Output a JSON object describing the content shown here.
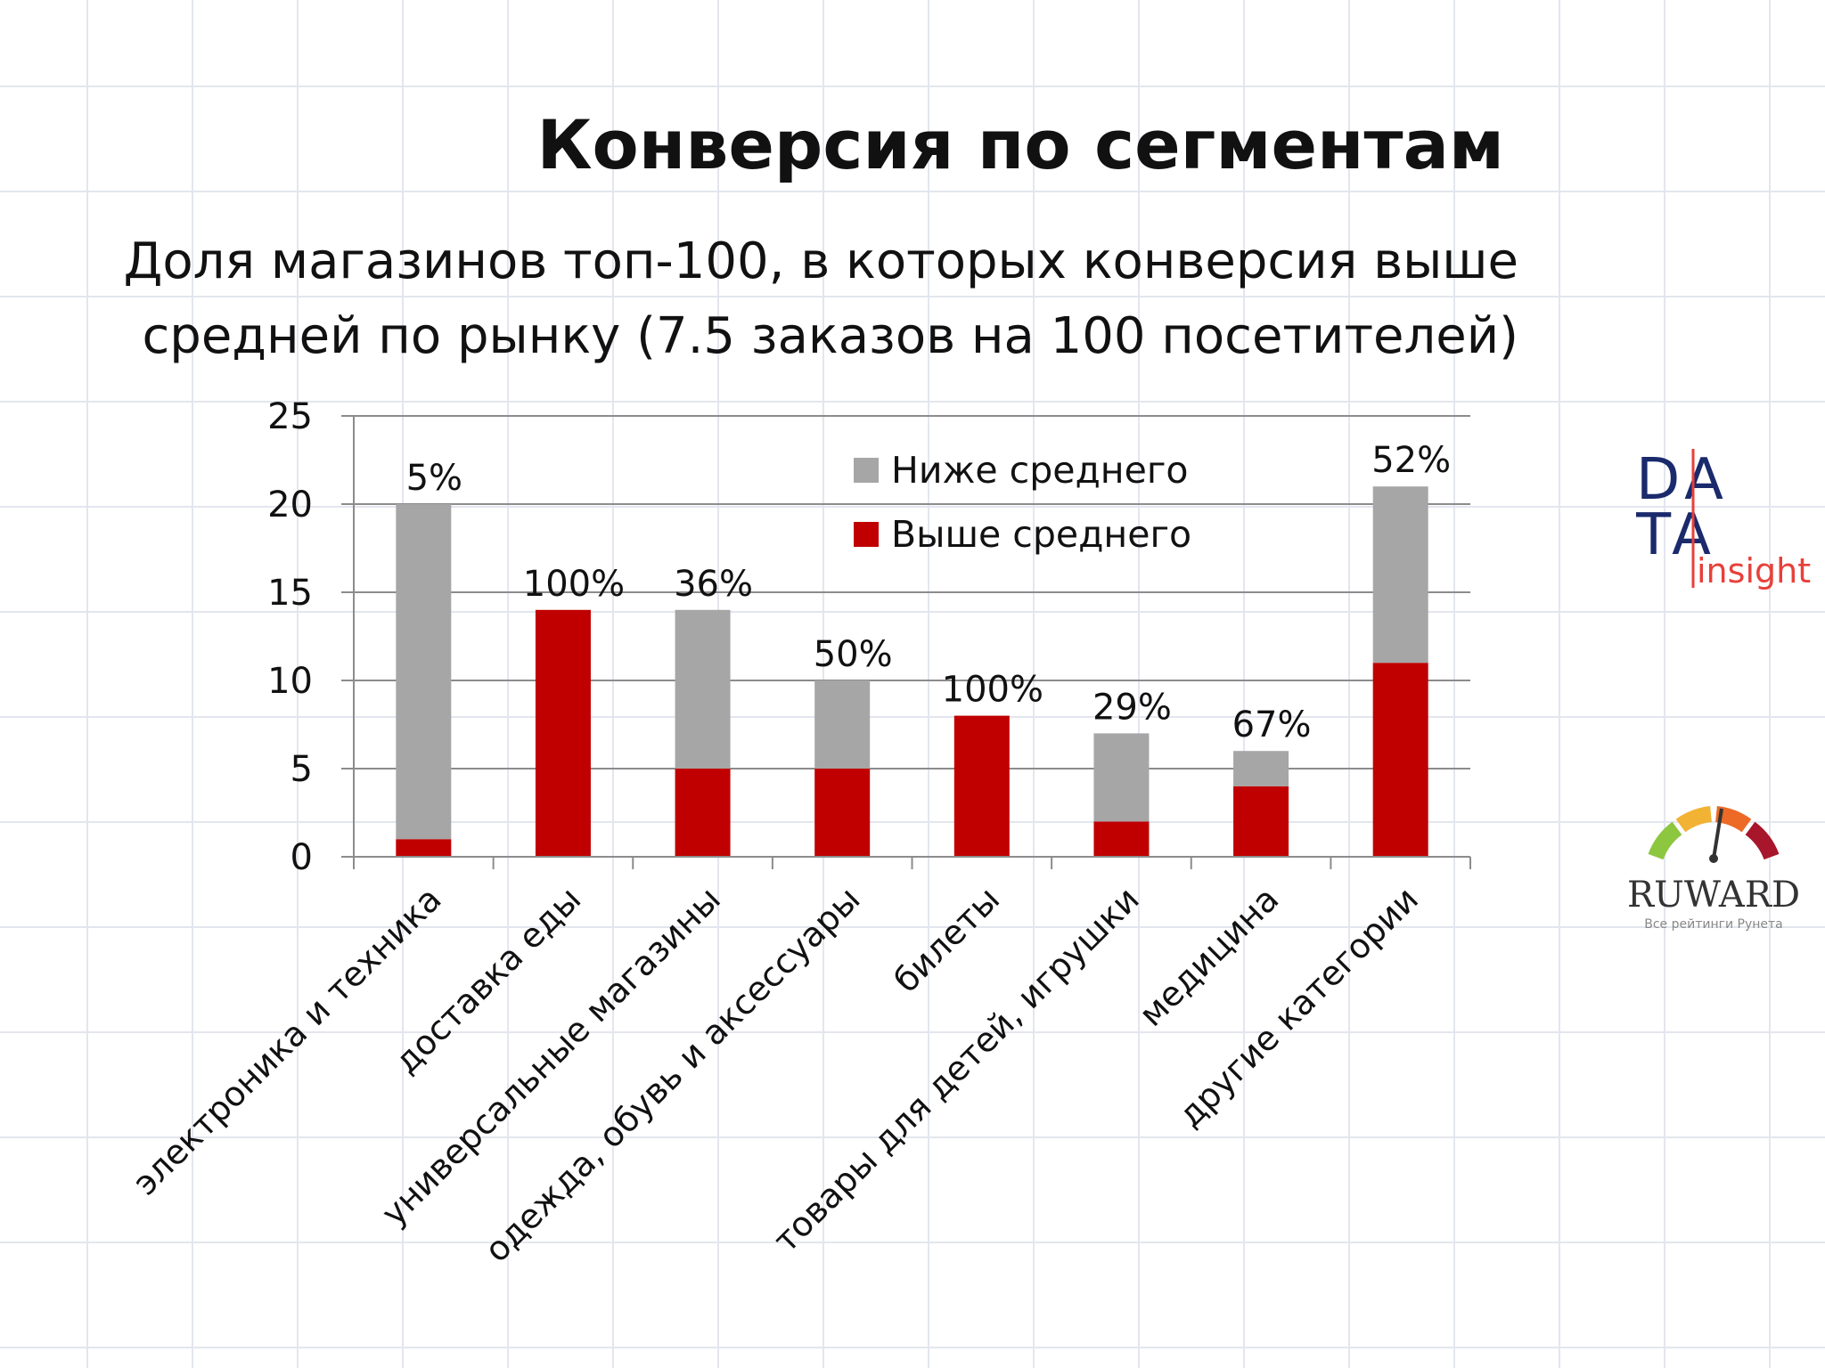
{
  "slide": {
    "title": "Конверсия по сегментам",
    "subtitle_line1": "Доля магазинов топ-100, в которых конверсия выше",
    "subtitle_line2": "средней по рынку (7.5 заказов на 100 посетителей)"
  },
  "chart_data": {
    "type": "bar",
    "stacked": true,
    "categories": [
      "электроника и техника",
      "доставка еды",
      "универсальные магазины",
      "одежда, обувь и аксессуары",
      "билеты",
      "товары для детей, игрушки",
      "медицина",
      "другие категории"
    ],
    "series": [
      {
        "name": "Выше среднего",
        "color": "#c00000",
        "values": [
          1,
          14,
          5,
          5,
          8,
          2,
          4,
          11
        ]
      },
      {
        "name": "Ниже среднего",
        "color": "#a6a6a6",
        "values": [
          19,
          0,
          9,
          5,
          0,
          5,
          2,
          10
        ]
      }
    ],
    "data_labels": [
      "5%",
      "100%",
      "36%",
      "50%",
      "100%",
      "29%",
      "67%",
      "52%"
    ],
    "ylim": [
      0,
      25
    ],
    "yticks": [
      0,
      5,
      10,
      15,
      20,
      25
    ],
    "grid": true,
    "legend": {
      "position": "top-center",
      "entries": [
        "Ниже среднего",
        "Выше среднего"
      ]
    }
  },
  "logos": {
    "data_insight": {
      "line1": "DA",
      "line2": "TA",
      "tagline": "insight",
      "accent": "#e8403a",
      "text_color": "#1a2a6c"
    },
    "ruward": {
      "name": "RUWARD",
      "tagline": "Все рейтинги Рунета"
    }
  }
}
